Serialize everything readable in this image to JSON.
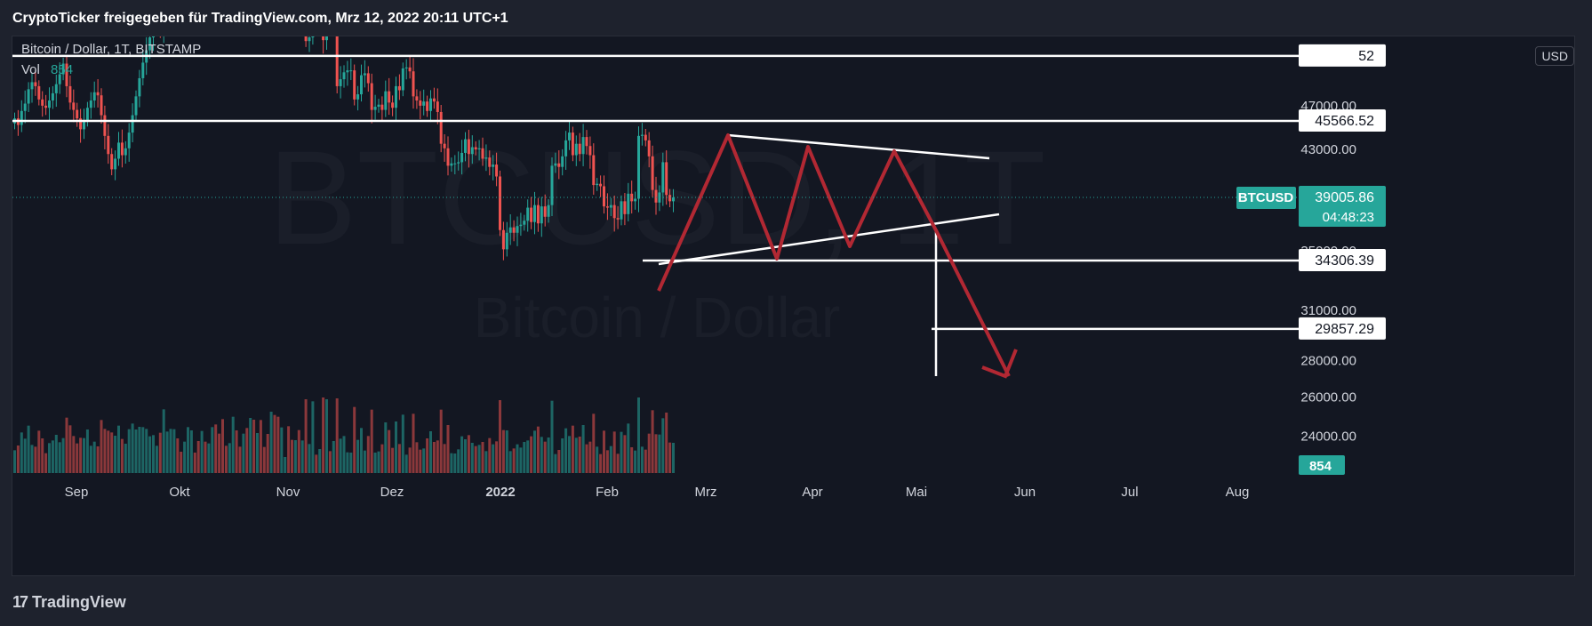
{
  "header": "CryptoTicker freigegeben für TradingView.com, Mrz 12, 2022 20:11 UTC+1",
  "legend": {
    "symbol": "Bitcoin / Dollar, 1T, BITSTAMP",
    "vol_label": "Vol",
    "vol_value": "854"
  },
  "watermark": {
    "symbol": "BTCUSD, 1T",
    "name": "Bitcoin / Dollar"
  },
  "currency_button": "USD",
  "footer": {
    "brand": "TradingView"
  },
  "colors": {
    "background": "#131722",
    "up": "#26a69a",
    "down": "#ef5350",
    "drawing_red": "#b22833",
    "drawing_white": "#ffffff"
  },
  "chart_data": {
    "type": "candlestick",
    "symbol": "BTCUSD",
    "interval": "1T",
    "x_ticks": [
      "Sep",
      "Okt",
      "Nov",
      "Dez",
      "2022",
      "Feb",
      "Mrz",
      "Apr",
      "Mai",
      "Jun",
      "Jul",
      "Aug"
    ],
    "y_ticks": [
      "47000.00",
      "43000.00",
      "35000.00",
      "31000.00",
      "28000.00",
      "26000.00",
      "24000.00"
    ],
    "y_scale": "log",
    "last_price": "39005.86",
    "countdown": "04:48:23",
    "last_volume": "854",
    "price_labels": [
      {
        "value": "52000.94",
        "display": "52"
      },
      {
        "value": "45566.52",
        "display": "45566.52"
      },
      {
        "value": "34306.39",
        "display": "34306.39"
      },
      {
        "value": "29857.29",
        "display": "29857.29"
      }
    ],
    "horizontal_lines": [
      52000.94,
      45566.52,
      34306.39,
      29857.29
    ],
    "closes": [
      45800,
      45200,
      46500,
      47200,
      48600,
      49300,
      48900,
      47600,
      47000,
      46800,
      47500,
      48200,
      49100,
      50100,
      51200,
      48900,
      47300,
      46600,
      45800,
      44800,
      45600,
      46800,
      47500,
      48300,
      48000,
      46100,
      44200,
      42600,
      41300,
      42200,
      43600,
      42500,
      43100,
      44500,
      46100,
      47900,
      49700,
      51300,
      52600,
      54000,
      55300,
      55700,
      54600,
      57100,
      58700,
      60300,
      61700,
      61100,
      60800,
      61600,
      63200,
      64400,
      64100,
      63200,
      64600,
      64100,
      64300,
      66200,
      64300,
      63200,
      61300,
      60600,
      61300,
      63600,
      62400,
      61700,
      63100,
      61500,
      63600,
      61800,
      63300,
      61100,
      60900,
      60000,
      63000,
      60400,
      58100,
      59500,
      59500,
      57600,
      56800,
      57400,
      56300,
      57300,
      53600,
      54000,
      57100,
      57000,
      57300,
      53700,
      57000,
      56600,
      57500,
      48900,
      49600,
      50300,
      50500,
      50500,
      47600,
      48100,
      50000,
      50200,
      49200,
      46600,
      46900,
      47100,
      46600,
      48400,
      47300,
      46800,
      48900,
      48500,
      50700,
      50800,
      50400,
      47900,
      47500,
      47000,
      47400,
      46500,
      47700,
      47400,
      46400,
      43500,
      43100,
      41600,
      41800,
      41800,
      41900,
      42700,
      43900,
      42600,
      43200,
      43000,
      43100,
      42200,
      42300,
      41500,
      41700,
      40700,
      36500,
      35100,
      36300,
      36700,
      36300,
      36800,
      36900,
      37200,
      38200,
      37100,
      38400,
      37000,
      38300,
      37500,
      38400,
      41600,
      41800,
      41500,
      42400,
      43800,
      44500,
      42500,
      43500,
      42600,
      44100,
      43300,
      42500,
      40000,
      40100,
      39900,
      38300,
      38200,
      38400,
      37400,
      37300,
      38700,
      37700,
      39300,
      38700,
      38900,
      44200,
      44300,
      43800,
      42400,
      39600,
      38600,
      39400,
      41900,
      39200,
      38700,
      39000
    ]
  }
}
